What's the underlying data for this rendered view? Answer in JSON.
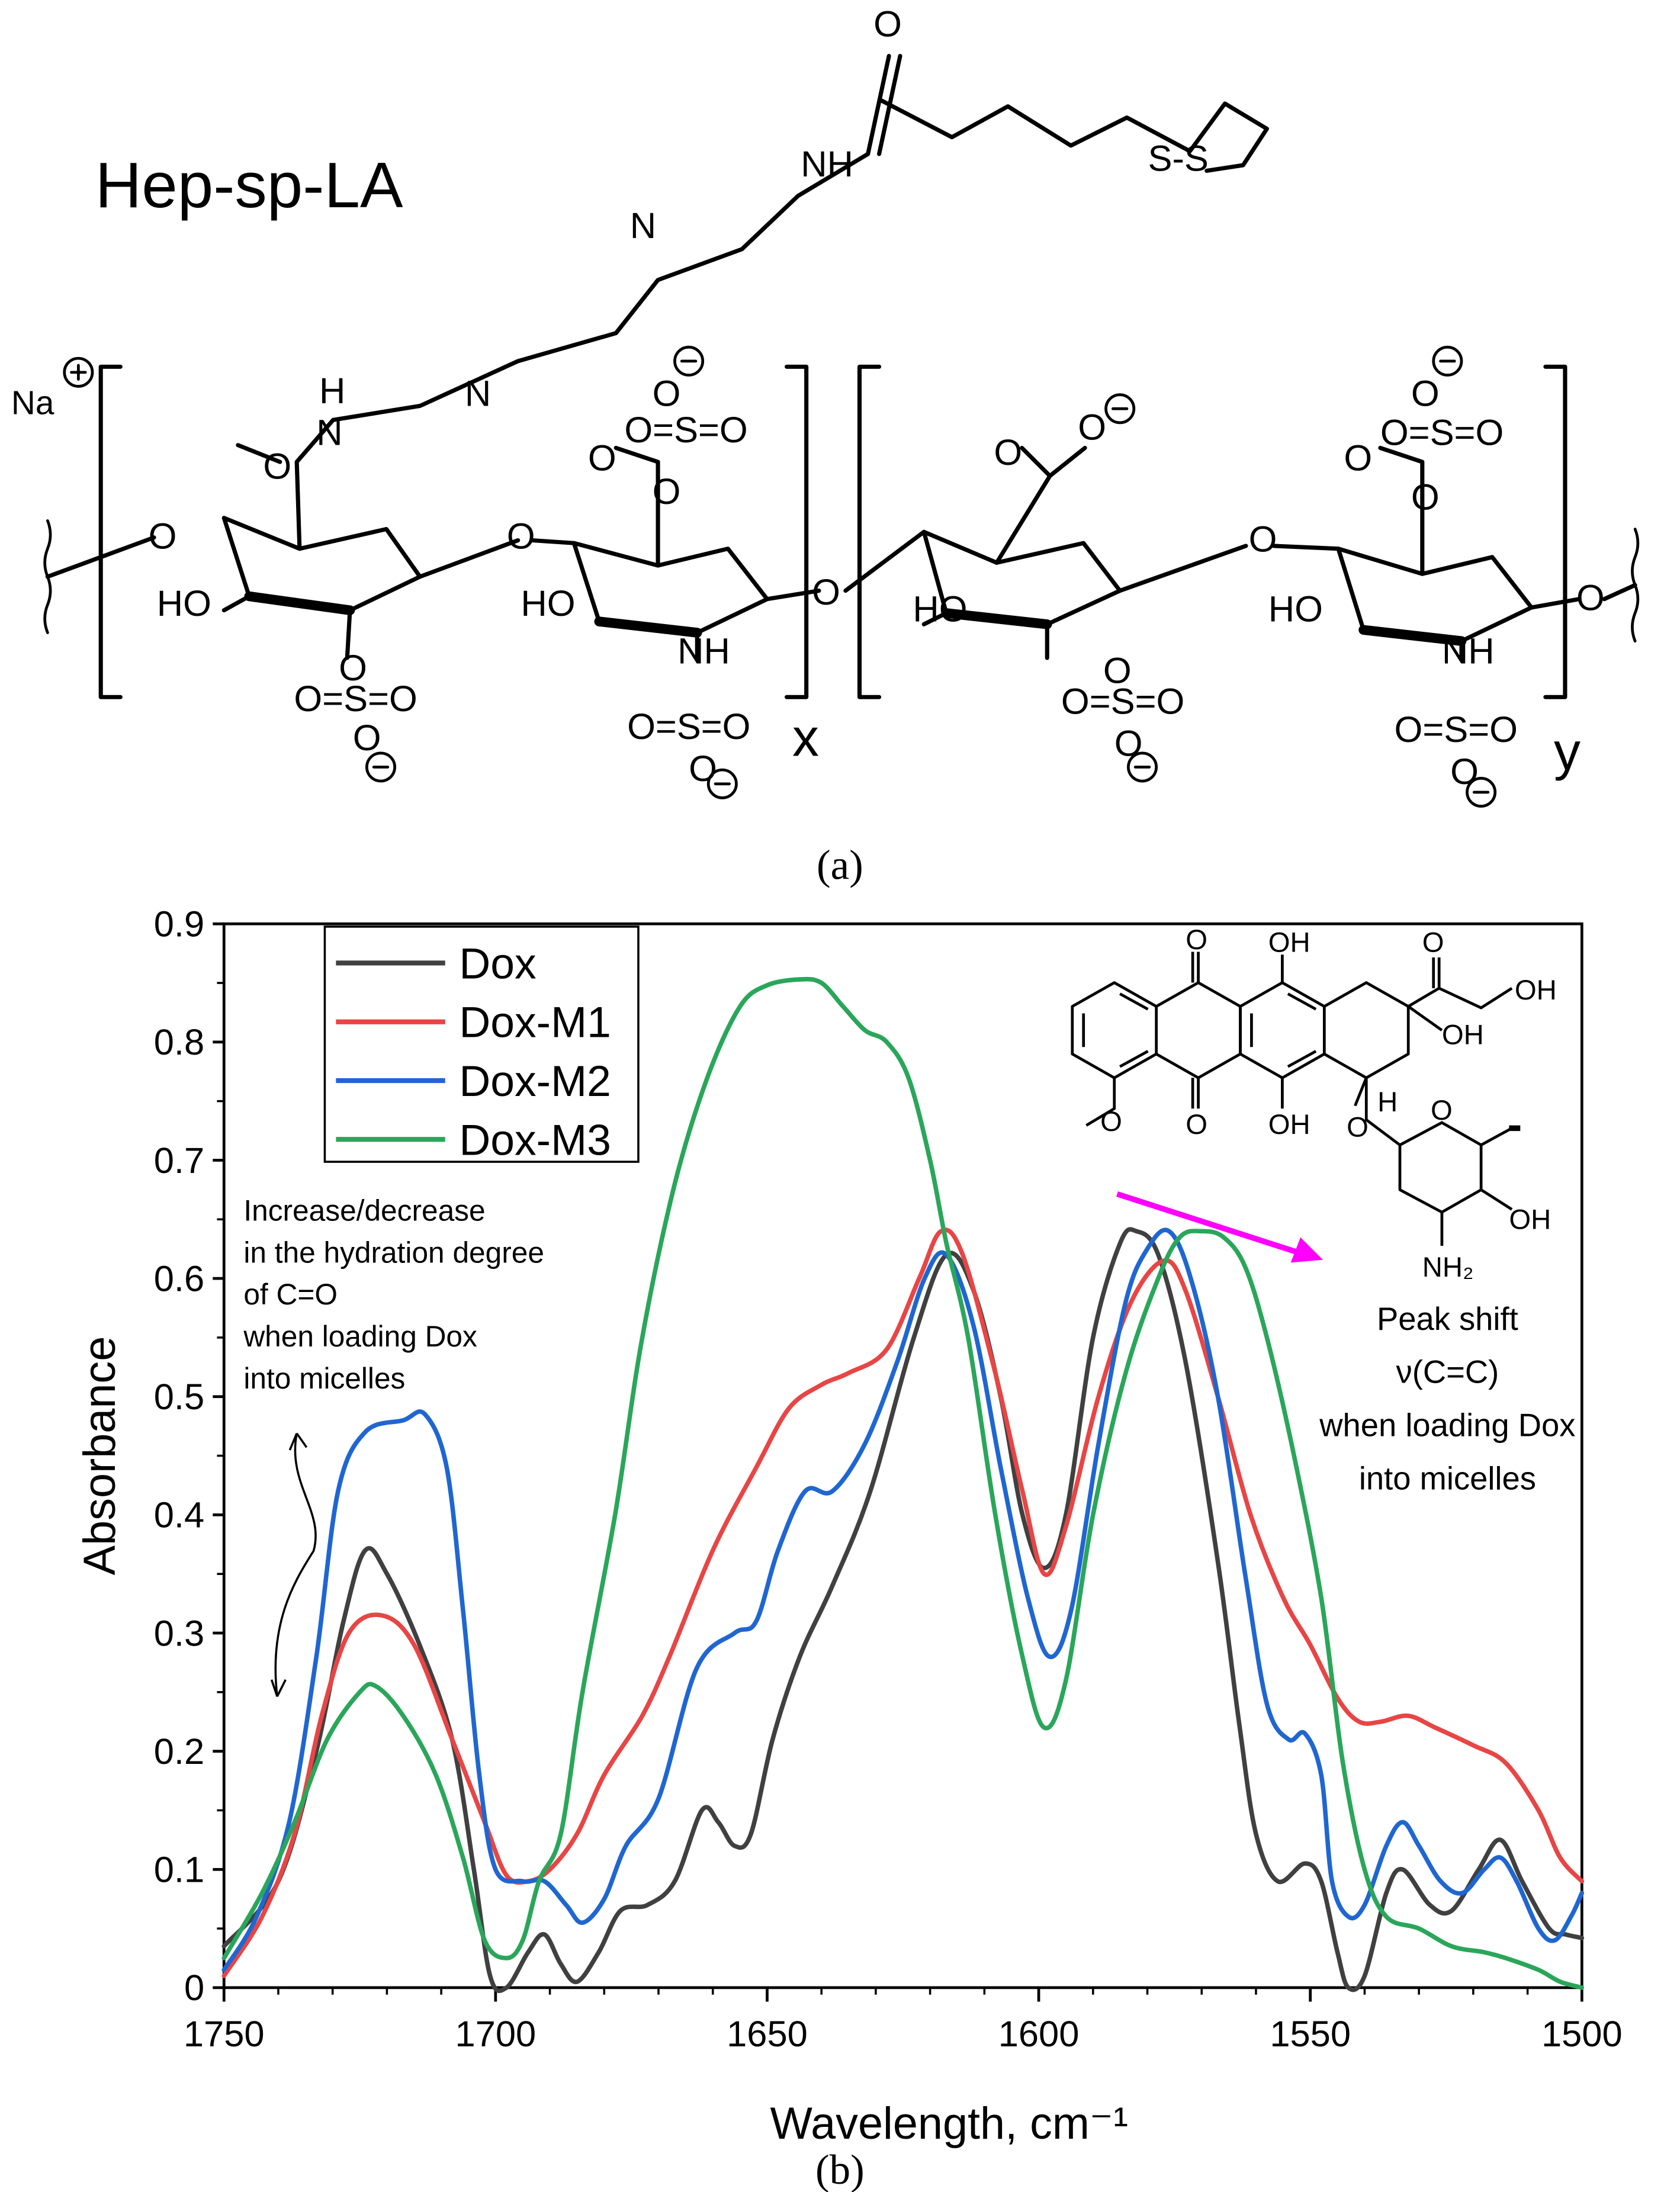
{
  "panel_a": {
    "title": "Hep-sp-LA",
    "caption": "(a)",
    "counterion": "Na",
    "repeat_labels": [
      "x",
      "y"
    ],
    "group_labels": [
      "O",
      "H",
      "N",
      "NH",
      "HO",
      "S-S",
      "O=S=O",
      "O⊖",
      "⊕",
      "⊖"
    ]
  },
  "panel_b": {
    "caption": "(b)",
    "molecule_labels": [
      "O",
      "OH",
      "OH",
      "OH",
      "O",
      "OH",
      "O",
      "H",
      "O",
      "OH",
      "NH2"
    ],
    "annotations": {
      "hydration": [
        "Increase/decrease",
        "in the hydration degree",
        "of  C=O",
        "when loading Dox",
        "into micelles"
      ],
      "peak_shift": [
        "Peak shift",
        "ν(C=C)",
        "when loading Dox",
        "into micelles"
      ]
    },
    "colors": {
      "arrow": "#ff00ff"
    }
  },
  "chart_data": {
    "type": "line",
    "title": "",
    "xlabel": "Wavelength, cm⁻¹",
    "ylabel": "Absorbance",
    "xlim": [
      1750,
      1500
    ],
    "ylim": [
      0,
      0.9
    ],
    "x_reversed": true,
    "xticks": [
      "1750",
      "1700",
      "1650",
      "1600",
      "1550",
      "1500"
    ],
    "yticks": [
      "0",
      "0.1",
      "0.2",
      "0.3",
      "0.4",
      "0.5",
      "0.6",
      "0.7",
      "0.8",
      "0.9"
    ],
    "legend_position": "top-left",
    "series": [
      {
        "name": "Dox",
        "color": "#404040",
        "points": [
          [
            1750,
            0.035
          ],
          [
            1740,
            0.09
          ],
          [
            1733,
            0.2
          ],
          [
            1728,
            0.31
          ],
          [
            1724,
            0.37
          ],
          [
            1720,
            0.35
          ],
          [
            1714,
            0.29
          ],
          [
            1708,
            0.21
          ],
          [
            1704,
            0.1
          ],
          [
            1701,
            0.01
          ],
          [
            1698,
            0.0
          ],
          [
            1694,
            0.03
          ],
          [
            1691,
            0.045
          ],
          [
            1688,
            0.02
          ],
          [
            1685,
            0.005
          ],
          [
            1681,
            0.03
          ],
          [
            1677,
            0.065
          ],
          [
            1672,
            0.07
          ],
          [
            1667,
            0.09
          ],
          [
            1662,
            0.15
          ],
          [
            1659,
            0.14
          ],
          [
            1656,
            0.12
          ],
          [
            1653,
            0.13
          ],
          [
            1649,
            0.21
          ],
          [
            1644,
            0.28
          ],
          [
            1638,
            0.34
          ],
          [
            1631,
            0.42
          ],
          [
            1623,
            0.55
          ],
          [
            1617,
            0.62
          ],
          [
            1612,
            0.59
          ],
          [
            1607,
            0.5
          ],
          [
            1603,
            0.4
          ],
          [
            1599,
            0.355
          ],
          [
            1595,
            0.4
          ],
          [
            1590,
            0.55
          ],
          [
            1585,
            0.63
          ],
          [
            1582,
            0.64
          ],
          [
            1578,
            0.62
          ],
          [
            1573,
            0.53
          ],
          [
            1567,
            0.36
          ],
          [
            1563,
            0.22
          ],
          [
            1560,
            0.13
          ],
          [
            1556,
            0.09
          ],
          [
            1551,
            0.105
          ],
          [
            1548,
            0.09
          ],
          [
            1545,
            0.03
          ],
          [
            1543,
            0.0
          ],
          [
            1540,
            0.01
          ],
          [
            1536,
            0.08
          ],
          [
            1533,
            0.1
          ],
          [
            1528,
            0.07
          ],
          [
            1524,
            0.065
          ],
          [
            1519,
            0.1
          ],
          [
            1515,
            0.125
          ],
          [
            1511,
            0.09
          ],
          [
            1506,
            0.05
          ],
          [
            1503,
            0.045
          ],
          [
            1500,
            0.042
          ]
        ]
      },
      {
        "name": "Dox-M1",
        "color": "#e84545",
        "points": [
          [
            1750,
            0.01
          ],
          [
            1743,
            0.06
          ],
          [
            1737,
            0.13
          ],
          [
            1732,
            0.23
          ],
          [
            1727,
            0.3
          ],
          [
            1721,
            0.315
          ],
          [
            1715,
            0.29
          ],
          [
            1708,
            0.21
          ],
          [
            1702,
            0.14
          ],
          [
            1698,
            0.095
          ],
          [
            1694,
            0.09
          ],
          [
            1690,
            0.1
          ],
          [
            1685,
            0.13
          ],
          [
            1680,
            0.18
          ],
          [
            1673,
            0.23
          ],
          [
            1668,
            0.28
          ],
          [
            1660,
            0.37
          ],
          [
            1652,
            0.44
          ],
          [
            1646,
            0.49
          ],
          [
            1640,
            0.51
          ],
          [
            1635,
            0.52
          ],
          [
            1628,
            0.54
          ],
          [
            1622,
            0.6
          ],
          [
            1618,
            0.64
          ],
          [
            1614,
            0.62
          ],
          [
            1608,
            0.52
          ],
          [
            1603,
            0.42
          ],
          [
            1599,
            0.35
          ],
          [
            1595,
            0.39
          ],
          [
            1589,
            0.5
          ],
          [
            1583,
            0.58
          ],
          [
            1577,
            0.615
          ],
          [
            1573,
            0.59
          ],
          [
            1567,
            0.5
          ],
          [
            1561,
            0.4
          ],
          [
            1555,
            0.33
          ],
          [
            1550,
            0.29
          ],
          [
            1545,
            0.245
          ],
          [
            1541,
            0.225
          ],
          [
            1537,
            0.225
          ],
          [
            1532,
            0.23
          ],
          [
            1527,
            0.22
          ],
          [
            1520,
            0.205
          ],
          [
            1514,
            0.19
          ],
          [
            1508,
            0.15
          ],
          [
            1504,
            0.11
          ],
          [
            1500,
            0.09
          ]
        ]
      },
      {
        "name": "Dox-M2",
        "color": "#1f66d1",
        "points": [
          [
            1750,
            0.015
          ],
          [
            1744,
            0.06
          ],
          [
            1738,
            0.14
          ],
          [
            1733,
            0.28
          ],
          [
            1729,
            0.42
          ],
          [
            1724,
            0.47
          ],
          [
            1717,
            0.48
          ],
          [
            1713,
            0.485
          ],
          [
            1709,
            0.44
          ],
          [
            1706,
            0.32
          ],
          [
            1703,
            0.18
          ],
          [
            1700,
            0.1
          ],
          [
            1695,
            0.09
          ],
          [
            1691,
            0.09
          ],
          [
            1687,
            0.07
          ],
          [
            1684,
            0.055
          ],
          [
            1680,
            0.075
          ],
          [
            1676,
            0.12
          ],
          [
            1670,
            0.16
          ],
          [
            1663,
            0.27
          ],
          [
            1656,
            0.3
          ],
          [
            1652,
            0.31
          ],
          [
            1648,
            0.37
          ],
          [
            1643,
            0.42
          ],
          [
            1638,
            0.42
          ],
          [
            1632,
            0.46
          ],
          [
            1626,
            0.53
          ],
          [
            1621,
            0.6
          ],
          [
            1617,
            0.62
          ],
          [
            1612,
            0.56
          ],
          [
            1607,
            0.44
          ],
          [
            1602,
            0.33
          ],
          [
            1598,
            0.28
          ],
          [
            1594,
            0.32
          ],
          [
            1589,
            0.46
          ],
          [
            1584,
            0.58
          ],
          [
            1580,
            0.625
          ],
          [
            1576,
            0.64
          ],
          [
            1572,
            0.6
          ],
          [
            1567,
            0.5
          ],
          [
            1562,
            0.35
          ],
          [
            1558,
            0.24
          ],
          [
            1554,
            0.21
          ],
          [
            1551,
            0.215
          ],
          [
            1548,
            0.18
          ],
          [
            1546,
            0.09
          ],
          [
            1543,
            0.06
          ],
          [
            1540,
            0.07
          ],
          [
            1536,
            0.12
          ],
          [
            1533,
            0.14
          ],
          [
            1530,
            0.12
          ],
          [
            1526,
            0.09
          ],
          [
            1522,
            0.08
          ],
          [
            1518,
            0.1
          ],
          [
            1515,
            0.11
          ],
          [
            1512,
            0.09
          ],
          [
            1508,
            0.05
          ],
          [
            1505,
            0.04
          ],
          [
            1502,
            0.06
          ],
          [
            1500,
            0.08
          ]
        ]
      },
      {
        "name": "Dox-M3",
        "color": "#2aa65a",
        "points": [
          [
            1750,
            0.025
          ],
          [
            1743,
            0.08
          ],
          [
            1737,
            0.14
          ],
          [
            1731,
            0.21
          ],
          [
            1725,
            0.25
          ],
          [
            1722,
            0.255
          ],
          [
            1717,
            0.23
          ],
          [
            1711,
            0.18
          ],
          [
            1706,
            0.11
          ],
          [
            1702,
            0.04
          ],
          [
            1698,
            0.025
          ],
          [
            1695,
            0.04
          ],
          [
            1692,
            0.09
          ],
          [
            1688,
            0.13
          ],
          [
            1684,
            0.25
          ],
          [
            1678,
            0.4
          ],
          [
            1673,
            0.55
          ],
          [
            1667,
            0.68
          ],
          [
            1661,
            0.77
          ],
          [
            1655,
            0.83
          ],
          [
            1650,
            0.848
          ],
          [
            1644,
            0.853
          ],
          [
            1640,
            0.85
          ],
          [
            1636,
            0.83
          ],
          [
            1632,
            0.81
          ],
          [
            1628,
            0.8
          ],
          [
            1624,
            0.77
          ],
          [
            1620,
            0.7
          ],
          [
            1617,
            0.63
          ],
          [
            1613,
            0.55
          ],
          [
            1608,
            0.4
          ],
          [
            1603,
            0.28
          ],
          [
            1599,
            0.22
          ],
          [
            1595,
            0.26
          ],
          [
            1590,
            0.4
          ],
          [
            1584,
            0.52
          ],
          [
            1578,
            0.6
          ],
          [
            1574,
            0.635
          ],
          [
            1570,
            0.64
          ],
          [
            1566,
            0.635
          ],
          [
            1562,
            0.61
          ],
          [
            1558,
            0.55
          ],
          [
            1553,
            0.45
          ],
          [
            1548,
            0.33
          ],
          [
            1544,
            0.19
          ],
          [
            1540,
            0.1
          ],
          [
            1536,
            0.06
          ],
          [
            1530,
            0.05
          ],
          [
            1524,
            0.035
          ],
          [
            1518,
            0.03
          ],
          [
            1514,
            0.025
          ],
          [
            1508,
            0.015
          ],
          [
            1504,
            0.005
          ],
          [
            1500,
            0.0
          ]
        ]
      }
    ]
  }
}
